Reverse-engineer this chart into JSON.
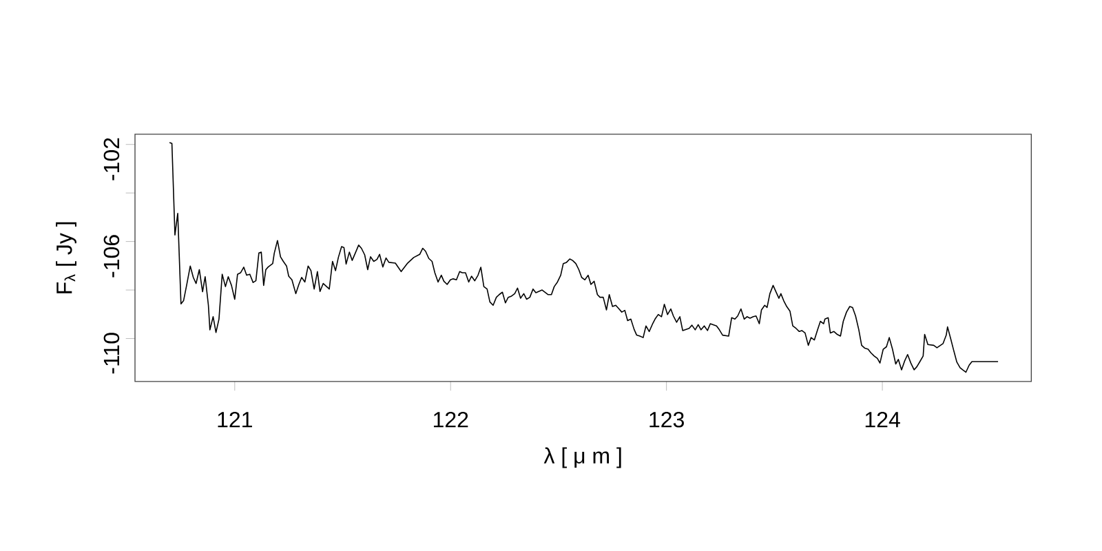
{
  "chart_data": {
    "type": "line",
    "xlabel": "λ [ μ m ]",
    "ylabel": "F$_{λ}$ [ Jy ]",
    "xlim": [
      120.538,
      124.69
    ],
    "ylim": [
      -111.77,
      -101.58
    ],
    "xticks": [
      121,
      122,
      123,
      124
    ],
    "yticks": [
      -110,
      {
        "value": -108,
        "label": null
      },
      -106,
      {
        "value": -104,
        "label": null
      },
      -102
    ],
    "grid": false,
    "series": [
      {
        "color": "#000000",
        "x": [
          120.698,
          120.709,
          120.723,
          120.736,
          120.751,
          120.763,
          120.778,
          120.794,
          120.808,
          120.821,
          120.836,
          120.851,
          120.863,
          120.878,
          120.885,
          120.9,
          120.913,
          120.927,
          120.942,
          120.957,
          120.97,
          120.985,
          121.0,
          121.013,
          121.027,
          121.042,
          121.055,
          121.07,
          121.085,
          121.098,
          121.112,
          121.123,
          121.134,
          121.144,
          121.155,
          121.176,
          121.183,
          121.198,
          121.212,
          121.225,
          121.24,
          121.25,
          121.265,
          121.283,
          121.297,
          121.31,
          121.325,
          121.34,
          121.353,
          121.368,
          121.383,
          121.395,
          121.41,
          121.438,
          121.453,
          121.467,
          121.48,
          121.495,
          121.506,
          121.516,
          121.531,
          121.544,
          121.559,
          121.574,
          121.587,
          121.602,
          121.616,
          121.629,
          121.644,
          121.659,
          121.671,
          121.686,
          121.701,
          121.714,
          121.744,
          121.771,
          121.799,
          121.829,
          121.857,
          121.871,
          121.884,
          121.899,
          121.914,
          121.927,
          121.942,
          121.957,
          121.969,
          121.984,
          121.999,
          122.012,
          122.027,
          122.042,
          122.054,
          122.069,
          122.084,
          122.097,
          122.112,
          122.127,
          122.14,
          122.154,
          122.169,
          122.182,
          122.197,
          122.212,
          122.225,
          122.24,
          122.254,
          122.267,
          122.282,
          122.297,
          122.31,
          122.324,
          122.339,
          122.352,
          122.367,
          122.382,
          122.395,
          122.424,
          122.452,
          122.467,
          122.48,
          122.495,
          122.51,
          122.522,
          122.537,
          122.552,
          122.565,
          122.58,
          122.594,
          122.607,
          122.622,
          122.637,
          122.65,
          122.665,
          122.68,
          122.692,
          122.707,
          122.722,
          122.735,
          122.75,
          122.765,
          122.778,
          122.793,
          122.807,
          122.82,
          122.835,
          122.85,
          122.862,
          122.877,
          122.892,
          122.905,
          122.92,
          122.935,
          122.947,
          122.962,
          122.977,
          122.99,
          123.005,
          123.02,
          123.032,
          123.047,
          123.062,
          123.075,
          123.105,
          123.118,
          123.133,
          123.147,
          123.16,
          123.175,
          123.19,
          123.203,
          123.232,
          123.245,
          123.26,
          123.288,
          123.302,
          123.317,
          123.33,
          123.345,
          123.36,
          123.373,
          123.387,
          123.402,
          123.415,
          123.43,
          123.44,
          123.455,
          123.466,
          123.479,
          123.494,
          123.509,
          123.521,
          123.53,
          123.543,
          123.557,
          123.572,
          123.585,
          123.6,
          123.615,
          123.627,
          123.642,
          123.657,
          123.67,
          123.685,
          123.7,
          123.713,
          123.728,
          123.734,
          123.749,
          123.759,
          123.776,
          123.791,
          123.806,
          123.819,
          123.834,
          123.849,
          123.862,
          123.876,
          123.891,
          123.904,
          123.919,
          123.934,
          123.947,
          123.962,
          123.977,
          123.989,
          124.004,
          124.019,
          124.032,
          124.047,
          124.062,
          124.074,
          124.089,
          124.104,
          124.117,
          124.132,
          124.147,
          124.16,
          124.174,
          124.189,
          124.196,
          124.211,
          124.238,
          124.253,
          124.281,
          124.296,
          124.302,
          124.317,
          124.33,
          124.345,
          124.36,
          124.372,
          124.387,
          124.402,
          124.415,
          124.536
        ],
        "values": [
          -101.92,
          -101.96,
          -105.73,
          -104.84,
          -108.57,
          -108.44,
          -107.77,
          -107.01,
          -107.48,
          -107.73,
          -107.16,
          -108.07,
          -107.45,
          -108.63,
          -109.64,
          -109.1,
          -109.75,
          -109.2,
          -107.35,
          -107.86,
          -107.45,
          -107.81,
          -108.38,
          -107.35,
          -107.29,
          -107.06,
          -107.39,
          -107.35,
          -107.69,
          -107.62,
          -106.47,
          -106.44,
          -107.81,
          -107.16,
          -107.05,
          -106.91,
          -106.49,
          -105.96,
          -106.63,
          -106.82,
          -107.01,
          -107.43,
          -107.58,
          -108.15,
          -107.77,
          -107.48,
          -107.67,
          -107.01,
          -107.2,
          -107.96,
          -107.24,
          -108.06,
          -107.73,
          -107.96,
          -106.82,
          -107.2,
          -106.66,
          -106.21,
          -106.25,
          -106.93,
          -106.44,
          -106.78,
          -106.47,
          -106.15,
          -106.28,
          -106.55,
          -107.16,
          -106.63,
          -106.82,
          -106.74,
          -106.53,
          -107.05,
          -106.68,
          -106.86,
          -106.89,
          -107.24,
          -106.91,
          -106.66,
          -106.53,
          -106.28,
          -106.4,
          -106.7,
          -106.82,
          -107.29,
          -107.67,
          -107.39,
          -107.64,
          -107.77,
          -107.58,
          -107.54,
          -107.58,
          -107.24,
          -107.29,
          -107.29,
          -107.67,
          -107.43,
          -107.62,
          -107.39,
          -107.06,
          -107.86,
          -107.96,
          -108.49,
          -108.63,
          -108.3,
          -108.19,
          -108.09,
          -108.53,
          -108.3,
          -108.25,
          -108.15,
          -107.92,
          -108.34,
          -108.15,
          -108.38,
          -108.3,
          -107.96,
          -108.11,
          -108.0,
          -108.19,
          -108.19,
          -107.86,
          -107.67,
          -107.39,
          -106.91,
          -106.86,
          -106.72,
          -106.78,
          -106.91,
          -107.16,
          -107.48,
          -107.58,
          -107.39,
          -107.77,
          -107.64,
          -108.19,
          -108.3,
          -108.3,
          -108.82,
          -108.19,
          -108.68,
          -108.63,
          -108.76,
          -108.91,
          -108.84,
          -109.26,
          -109.2,
          -109.62,
          -109.86,
          -109.9,
          -109.96,
          -109.48,
          -109.71,
          -109.41,
          -109.2,
          -109.01,
          -109.1,
          -108.59,
          -109.01,
          -108.78,
          -109.07,
          -109.33,
          -109.1,
          -109.67,
          -109.58,
          -109.45,
          -109.64,
          -109.43,
          -109.64,
          -109.48,
          -109.67,
          -109.39,
          -109.48,
          -109.64,
          -109.86,
          -109.9,
          -109.14,
          -109.2,
          -109.07,
          -108.78,
          -109.2,
          -109.1,
          -109.16,
          -109.1,
          -109.07,
          -109.39,
          -108.82,
          -108.63,
          -108.72,
          -108.15,
          -107.81,
          -108.11,
          -108.34,
          -108.15,
          -108.44,
          -108.68,
          -108.87,
          -109.48,
          -109.58,
          -109.71,
          -109.67,
          -109.77,
          -110.28,
          -109.96,
          -110.06,
          -109.64,
          -109.29,
          -109.39,
          -109.2,
          -109.14,
          -109.77,
          -109.71,
          -109.83,
          -109.9,
          -109.29,
          -108.91,
          -108.68,
          -108.72,
          -109.07,
          -109.64,
          -110.28,
          -110.4,
          -110.44,
          -110.59,
          -110.72,
          -110.82,
          -111.01,
          -110.44,
          -110.34,
          -109.96,
          -110.44,
          -111.05,
          -110.86,
          -111.29,
          -110.91,
          -110.66,
          -111.01,
          -111.29,
          -111.16,
          -110.95,
          -110.72,
          -109.83,
          -110.25,
          -110.28,
          -110.38,
          -110.21,
          -109.86,
          -109.52,
          -110.02,
          -110.47,
          -110.97,
          -111.2,
          -111.29,
          -111.39,
          -111.1,
          -110.95,
          -110.95
        ]
      }
    ]
  }
}
